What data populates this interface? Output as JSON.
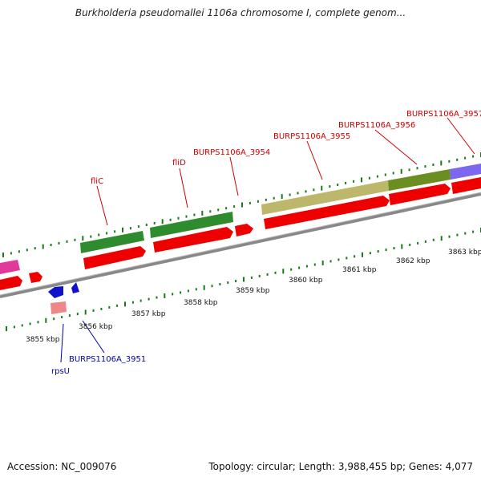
{
  "title": "Burkholderia pseudomallei 1106a chromosome I, complete genom...",
  "footer": {
    "accession": "Accession: NC_009076",
    "summary": "Topology: circular; Length: 3,988,455 bp; Genes: 4,077"
  },
  "colors": {
    "forward_gene": "#ee0000",
    "reverse_gene": "#1111cc",
    "reverse_gene_light": "#ee8888",
    "flagellar_feature": "#2e8b2e",
    "olive_feature": "#bdb76b",
    "dark_olive_feature": "#6b8e23",
    "purple_feature": "#7b68ee",
    "magenta_feature": "#e0399a",
    "backbone": "#777777",
    "tick": "#1a7a1a",
    "forward_label": "#cc0000",
    "reverse_label": "#0000aa"
  },
  "scale_labels": [
    "3855 kbp",
    "3856 kbp",
    "3857 kbp",
    "3858 kbp",
    "3859 kbp",
    "3860 kbp",
    "3861 kbp",
    "3862 kbp",
    "3863 kbp"
  ],
  "gene_labels": {
    "forward": [
      "fliC",
      "fliD",
      "BURPS1106A_3954",
      "BURPS1106A_3955",
      "BURPS1106A_3956",
      "BURPS1106A_3957"
    ],
    "reverse": [
      "BURPS1106A_3951",
      "rpsU"
    ]
  }
}
